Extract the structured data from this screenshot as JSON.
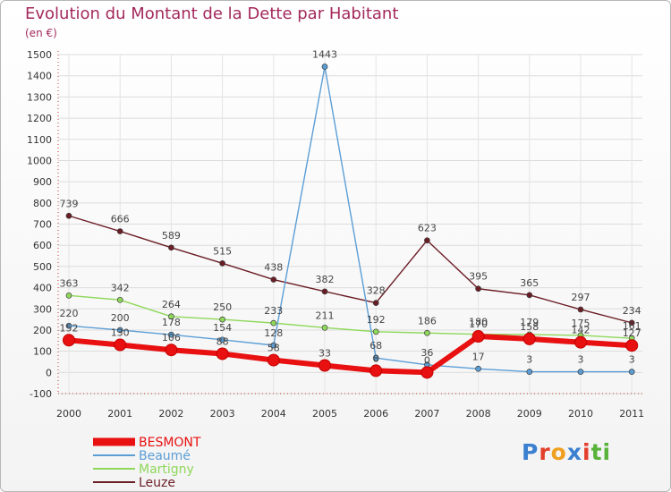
{
  "chart_data": {
    "type": "line",
    "title": "Evolution du Montant de la Dette par Habitant",
    "subtitle": "(en €)",
    "categories": [
      "2000",
      "2001",
      "2002",
      "2003",
      "2004",
      "2005",
      "2006",
      "2007",
      "2008",
      "2009",
      "2010",
      "2011"
    ],
    "ylim": [
      -100,
      1500
    ],
    "yticks": [
      -100,
      0,
      100,
      200,
      300,
      400,
      500,
      600,
      700,
      800,
      900,
      1000,
      1100,
      1200,
      1300,
      1400,
      1500
    ],
    "legend_position": "bottom-left",
    "series": [
      {
        "name": "Leuze",
        "color": "#6b1d25",
        "values": [
          739,
          666,
          589,
          515,
          438,
          382,
          328,
          623,
          395,
          365,
          297,
          234
        ]
      },
      {
        "name": "Martigny",
        "color": "#8fd85b",
        "values": [
          363,
          342,
          264,
          250,
          233,
          211,
          192,
          186,
          180,
          179,
          175,
          161
        ]
      },
      {
        "name": "Beaumé",
        "color": "#5b9ed6",
        "values": [
          220,
          200,
          178,
          154,
          128,
          1443,
          68,
          36,
          17,
          3,
          3,
          3
        ]
      },
      {
        "name": "BESMONT",
        "color": "#e81010",
        "values": [
          152,
          130,
          106,
          88,
          58,
          33,
          8,
          0,
          170,
          158,
          142,
          127
        ]
      }
    ]
  },
  "logo": {
    "text": "Proxiti",
    "letters": [
      "P",
      "r",
      "o",
      "x",
      "i",
      "t",
      "i"
    ],
    "colors": [
      "#3a7fd0",
      "#e3402c",
      "#f0a020",
      "#3a7fd0",
      "#e3402c",
      "#59b33a",
      "#59b33a"
    ]
  }
}
